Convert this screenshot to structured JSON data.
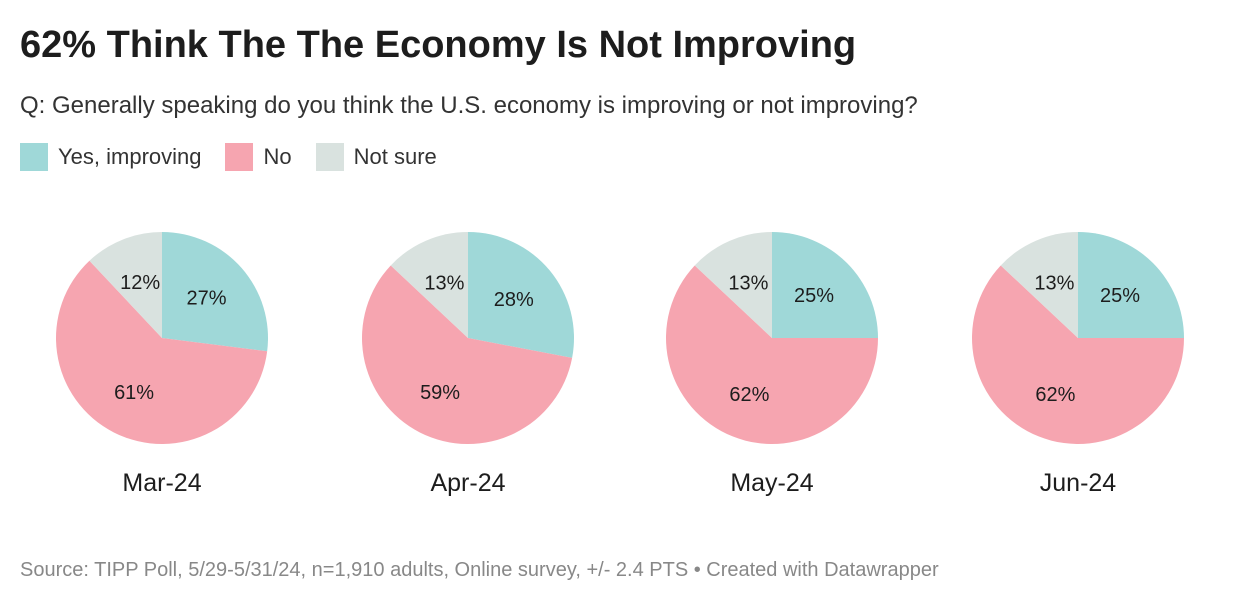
{
  "title": "62% Think The The Economy Is Not Improving",
  "subtitle": "Q: Generally speaking do you think the U.S. economy is improving or not improving?",
  "legend": [
    {
      "label": "Yes, improving",
      "color": "#9fd8d8"
    },
    {
      "label": "No",
      "color": "#f6a5b0"
    },
    {
      "label": "Not sure",
      "color": "#d9e2df"
    }
  ],
  "source": "Source: TIPP Poll, 5/29-5/31/24, n=1,910 adults, Online survey, +/- 2.4 PTS • Created with Datawrapper",
  "chart_data": {
    "type": "pie",
    "series_names": [
      "Yes, improving",
      "No",
      "Not sure"
    ],
    "colors": [
      "#9fd8d8",
      "#f6a5b0",
      "#d9e2df"
    ],
    "charts": [
      {
        "label": "Mar-24",
        "values": [
          27,
          61,
          12
        ]
      },
      {
        "label": "Apr-24",
        "values": [
          28,
          59,
          13
        ]
      },
      {
        "label": "May-24",
        "values": [
          25,
          62,
          13
        ]
      },
      {
        "label": "Jun-24",
        "values": [
          25,
          62,
          13
        ]
      }
    ],
    "value_suffix": "%"
  }
}
